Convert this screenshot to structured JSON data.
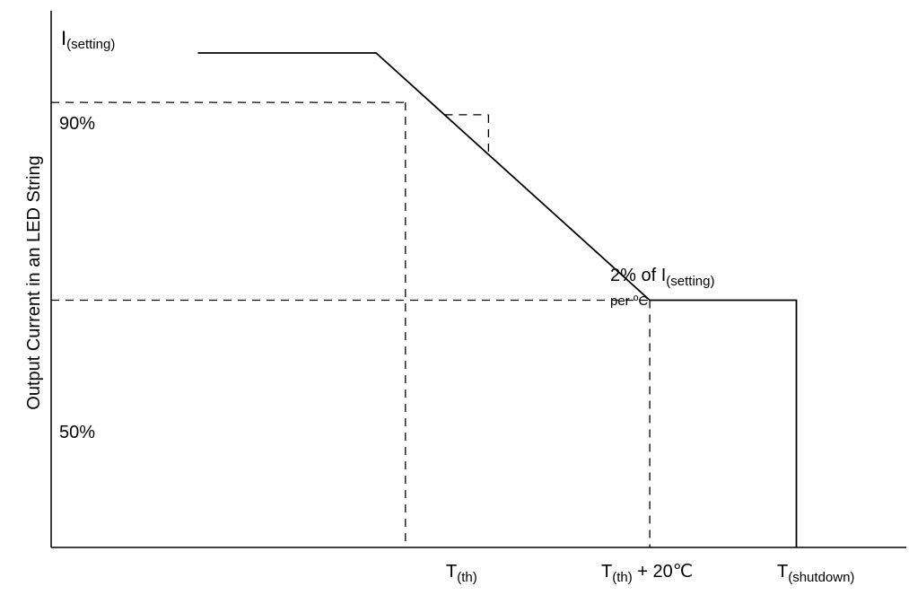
{
  "chart_data": {
    "type": "line",
    "ylabel": "Output Current in an LED String",
    "x_ticks": [
      {
        "key": "th",
        "main": "T",
        "sub": "(th)",
        "suffix": "",
        "x": 0
      },
      {
        "key": "th20",
        "main": "T",
        "sub": "(th)",
        "suffix": " + 20℃",
        "x": 20
      },
      {
        "key": "shutdown",
        "main": "T",
        "sub": "(shutdown)",
        "suffix": "",
        "x": 32
      }
    ],
    "y_labels": {
      "setting": {
        "main": "I",
        "sub": "(setting)",
        "value": 100
      },
      "p90": {
        "text": "90%",
        "value": 90
      },
      "p50": {
        "text": "50%",
        "value": 50
      }
    },
    "series": [
      {
        "points": [
          [
            -17,
            100
          ],
          [
            -2.4,
            100
          ],
          [
            20,
            50
          ],
          [
            32,
            50
          ],
          [
            32,
            0
          ]
        ]
      }
    ],
    "annotation": {
      "line1": "2% of I",
      "line1_sub": "(setting)",
      "line2": "per ºC"
    },
    "xlim": [
      -29,
      41
    ],
    "ylim": [
      0,
      100
    ]
  }
}
